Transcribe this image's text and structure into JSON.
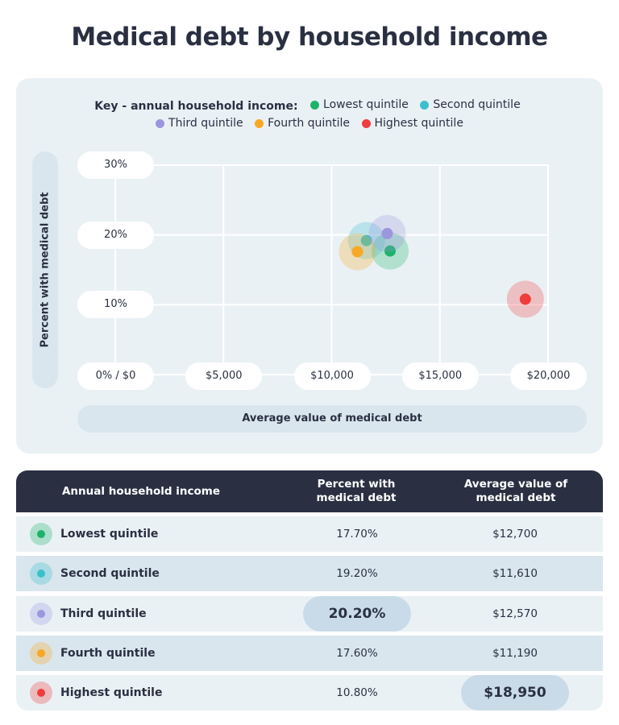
{
  "title": "Medical debt by household income",
  "legend": {
    "key_title": "Key - annual household income:",
    "items": [
      {
        "label": "Lowest quintile",
        "color": "#1db36b"
      },
      {
        "label": "Second quintile",
        "color": "#3bbfcc"
      },
      {
        "label": "Third quintile",
        "color": "#9b97dd"
      },
      {
        "label": "Fourth quintile",
        "color": "#f7a825"
      },
      {
        "label": "Highest quintile",
        "color": "#f03c3c"
      }
    ]
  },
  "chart_data": {
    "type": "scatter",
    "xlabel": "Average value of medical debt",
    "ylabel": "Percent with medical debt",
    "xlim": [
      0,
      20000
    ],
    "ylim": [
      0,
      30
    ],
    "x_ticks": [
      0,
      5000,
      10000,
      15000,
      20000
    ],
    "y_ticks": [
      10,
      20,
      30
    ],
    "x_tick_labels": [
      "0% / $0",
      "$5,000",
      "$10,000",
      "$15,000",
      "$20,000"
    ],
    "y_tick_labels": [
      "10%",
      "20%",
      "30%"
    ],
    "grid": true,
    "legend_position": "top",
    "series": [
      {
        "name": "Lowest quintile",
        "x": 12700,
        "y": 17.7,
        "color": "#1db36b"
      },
      {
        "name": "Second quintile",
        "x": 11610,
        "y": 19.2,
        "color": "#3bbfcc"
      },
      {
        "name": "Third quintile",
        "x": 12570,
        "y": 20.2,
        "color": "#9b97dd"
      },
      {
        "name": "Fourth quintile",
        "x": 11190,
        "y": 17.6,
        "color": "#f7a825"
      },
      {
        "name": "Highest quintile",
        "x": 18950,
        "y": 10.8,
        "color": "#f03c3c"
      }
    ]
  },
  "table": {
    "headers": [
      "Annual household income",
      "Percent with medical debt",
      "Average value of medical debt"
    ],
    "rows": [
      {
        "name": "Lowest quintile",
        "percent": "17.70%",
        "value": "$12,700",
        "color": "#1db36b",
        "highlight": ""
      },
      {
        "name": "Second quintile",
        "percent": "19.20%",
        "value": "$11,610",
        "color": "#3bbfcc",
        "highlight": ""
      },
      {
        "name": "Third quintile",
        "percent": "20.20%",
        "value": "$12,570",
        "color": "#9b97dd",
        "highlight": "percent"
      },
      {
        "name": "Fourth quintile",
        "percent": "17.60%",
        "value": "$11,190",
        "color": "#f7a825",
        "highlight": ""
      },
      {
        "name": "Highest quintile",
        "percent": "10.80%",
        "value": "$18,950",
        "color": "#f03c3c",
        "highlight": "value"
      }
    ]
  }
}
